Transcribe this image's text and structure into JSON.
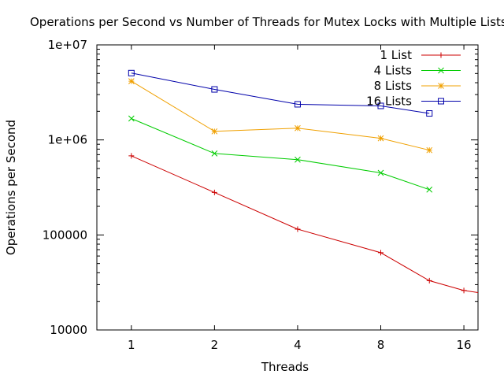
{
  "chart_data": {
    "type": "line",
    "title": "Operations per Second vs Number of Threads for Mutex Locks with Multiple Lists",
    "xlabel": "Threads",
    "ylabel": "Operations per Second",
    "x_scale": "log2",
    "y_scale": "log10",
    "xlim": [
      0.75,
      18
    ],
    "ylim": [
      10000,
      10000000
    ],
    "x_ticks": [
      1,
      2,
      4,
      8,
      16
    ],
    "x_tick_labels": [
      "1",
      "2",
      "4",
      "8",
      "16"
    ],
    "y_ticks": [
      10000,
      100000,
      1000000,
      10000000
    ],
    "y_tick_labels": [
      "10000",
      "100000",
      "1e+06",
      "1e+07"
    ],
    "grid": false,
    "legend_position": "top-right",
    "series": [
      {
        "name": "1 List",
        "color": "#cc0000",
        "marker": "plus",
        "x": [
          1,
          2,
          4,
          8,
          12,
          16,
          24
        ],
        "y": [
          680000,
          280000,
          115000,
          65000,
          33000,
          26000,
          22000
        ]
      },
      {
        "name": "4 Lists",
        "color": "#00cc00",
        "marker": "cross",
        "x": [
          1,
          2,
          4,
          8,
          12
        ],
        "y": [
          1680000,
          720000,
          620000,
          450000,
          300000
        ]
      },
      {
        "name": "8 Lists",
        "color": "#f0a000",
        "marker": "star",
        "x": [
          1,
          2,
          4,
          8,
          12
        ],
        "y": [
          4150000,
          1230000,
          1330000,
          1040000,
          780000
        ]
      },
      {
        "name": "16 Lists",
        "color": "#0000aa",
        "marker": "square",
        "x": [
          1,
          2,
          4,
          8,
          12
        ],
        "y": [
          5050000,
          3400000,
          2370000,
          2280000,
          1900000
        ]
      }
    ]
  }
}
